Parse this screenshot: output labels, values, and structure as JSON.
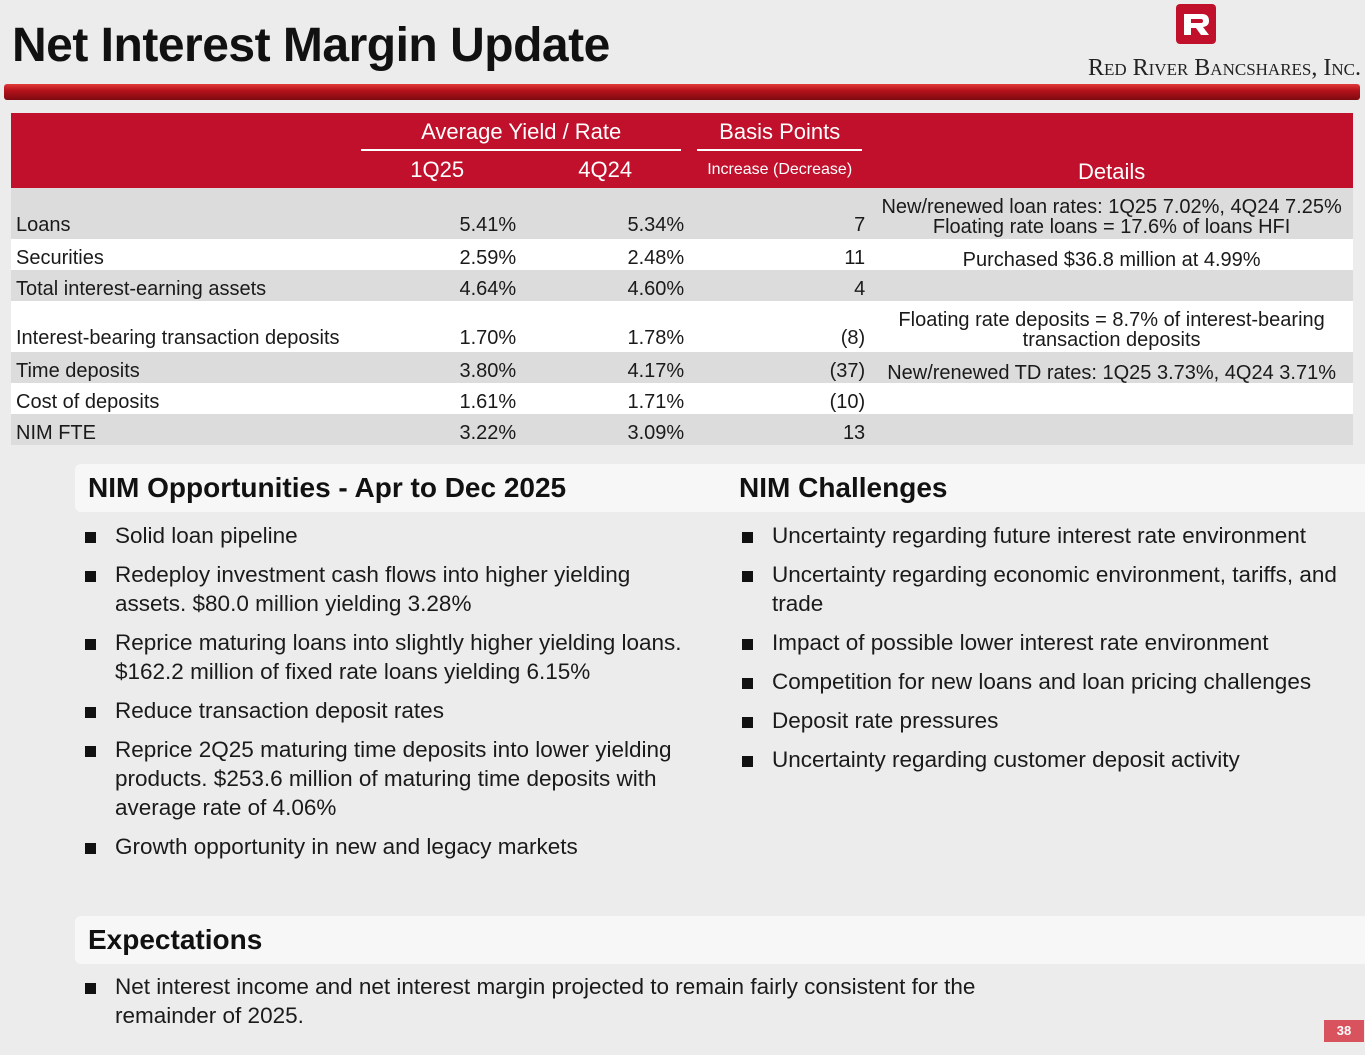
{
  "header": {
    "title": "Net Interest Margin Update",
    "company": "Red River Bancshares, Inc.",
    "brand_color": "#c0102b"
  },
  "table": {
    "group_yield": "Average Yield / Rate",
    "group_bp": "Basis Points",
    "col_q1": "1Q25",
    "col_q4": "4Q24",
    "col_change": "Increase (Decrease)",
    "col_details": "Details",
    "rows": [
      {
        "label": "Loans",
        "q1": "5.41%",
        "q4": "5.34%",
        "change": "7",
        "details": [
          "New/renewed loan rates: 1Q25 7.02%, 4Q24 7.25%",
          "Floating rate loans = 17.6% of loans HFI"
        ]
      },
      {
        "label": "Securities",
        "q1": "2.59%",
        "q4": "2.48%",
        "change": "11",
        "details": [
          "Purchased $36.8 million at 4.99%"
        ]
      },
      {
        "label": "Total interest-earning assets",
        "q1": "4.64%",
        "q4": "4.60%",
        "change": "4",
        "details": [
          ""
        ]
      },
      {
        "label": "Interest-bearing transaction deposits",
        "q1": "1.70%",
        "q4": "1.78%",
        "change": "(8)",
        "details": [
          "Floating rate deposits = 8.7% of interest-bearing",
          "transaction deposits"
        ]
      },
      {
        "label": "Time deposits",
        "q1": "3.80%",
        "q4": "4.17%",
        "change": "(37)",
        "details": [
          "New/renewed TD rates: 1Q25 3.73%, 4Q24 3.71%"
        ]
      },
      {
        "label": "Cost of deposits",
        "q1": "1.61%",
        "q4": "1.71%",
        "change": "(10)",
        "details": [
          ""
        ]
      },
      {
        "label": "NIM FTE",
        "q1": "3.22%",
        "q4": "3.09%",
        "change": "13",
        "details": [
          ""
        ]
      }
    ]
  },
  "opportunities": {
    "title": "NIM Opportunities - Apr to Dec 2025",
    "items": [
      "Solid loan pipeline",
      "Redeploy investment cash flows into higher yielding assets. $80.0 million yielding 3.28%",
      "Reprice maturing loans into slightly higher yielding loans. $162.2 million of fixed rate loans yielding 6.15%",
      "Reduce transaction deposit rates",
      "Reprice 2Q25 maturing time deposits into lower yielding products. $253.6 million of maturing time deposits with average rate of 4.06%",
      "Growth opportunity in new and legacy markets"
    ]
  },
  "challenges": {
    "title": "NIM Challenges",
    "items": [
      "Uncertainty regarding future interest rate environment",
      "Uncertainty regarding economic environment, tariffs, and trade",
      "Impact of possible lower interest rate environment",
      "Competition for new loans and loan pricing challenges",
      "Deposit rate pressures",
      "Uncertainty regarding customer deposit activity"
    ]
  },
  "expectations": {
    "title": "Expectations",
    "items": [
      "Net interest income and net interest margin projected to remain fairly consistent for the remainder of 2025."
    ]
  },
  "page_number": "38"
}
